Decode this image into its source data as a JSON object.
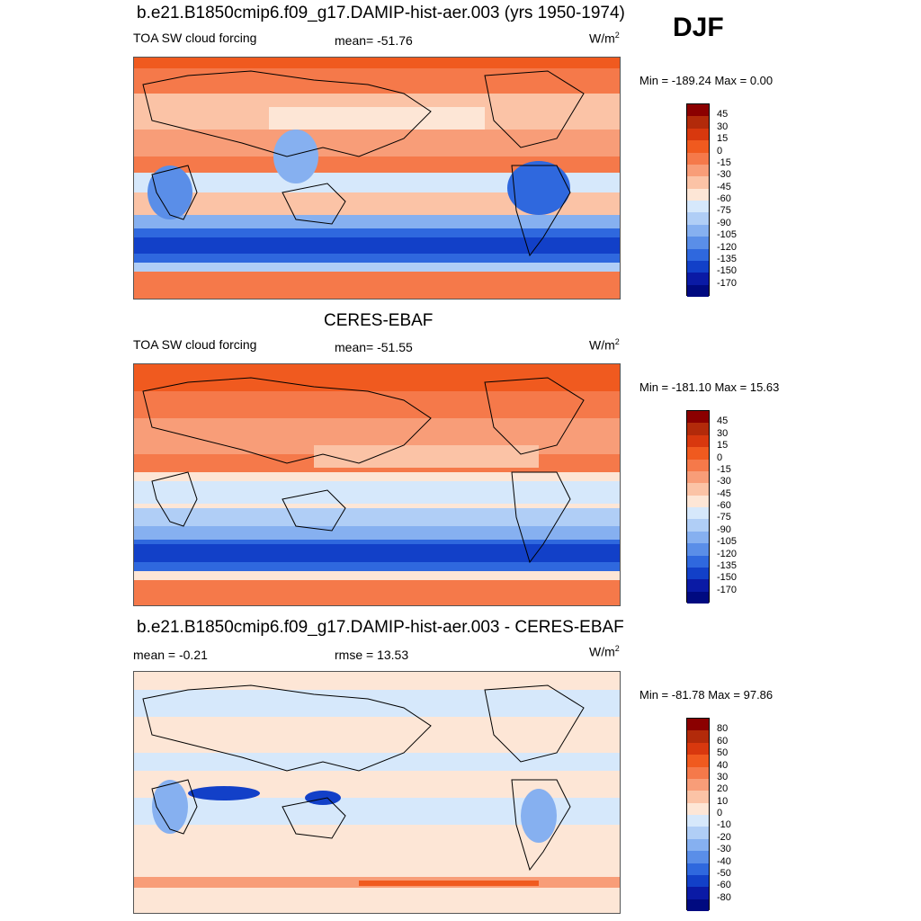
{
  "season": "DJF",
  "panels": [
    {
      "title": "b.e21.B1850cmip6.f09_g17.DAMIP-hist-aer.003 (yrs 1950-1974)",
      "left_label": "TOA SW cloud forcing",
      "center_label": "mean= -51.76",
      "units": "W/m",
      "units_sup": "2",
      "minmax": "Min = -189.24 Max =    0.00",
      "levels": [
        "45",
        "30",
        "15",
        "0",
        "-15",
        "-30",
        "-45",
        "-60",
        "-75",
        "-90",
        "-105",
        "-120",
        "-135",
        "-150",
        "-170"
      ]
    },
    {
      "title": "CERES-EBAF",
      "left_label": "TOA SW cloud forcing",
      "center_label": "mean= -51.55",
      "units": "W/m",
      "units_sup": "2",
      "minmax": "Min = -181.10 Max =  15.63",
      "levels": [
        "45",
        "30",
        "15",
        "0",
        "-15",
        "-30",
        "-45",
        "-60",
        "-75",
        "-90",
        "-105",
        "-120",
        "-135",
        "-150",
        "-170"
      ]
    },
    {
      "title": "b.e21.B1850cmip6.f09_g17.DAMIP-hist-aer.003 - CERES-EBAF",
      "left_label": "mean =  -0.21",
      "center_label": "rmse =  13.53",
      "units": "W/m",
      "units_sup": "2",
      "minmax": "Min = -81.78 Max =  97.86",
      "levels": [
        "80",
        "60",
        "50",
        "40",
        "30",
        "20",
        "10",
        "0",
        "-10",
        "-20",
        "-30",
        "-40",
        "-50",
        "-60",
        "-80"
      ]
    }
  ],
  "colors": {
    "scale": [
      "#8b0000",
      "#b22a0a",
      "#d8380e",
      "#f05a1f",
      "#f5794a",
      "#f89d78",
      "#fbc3a6",
      "#fde6d6",
      "#d6e8fb",
      "#b0cef6",
      "#86b0f0",
      "#5a8ee8",
      "#2f68de",
      "#1240c8",
      "#0a1aa5",
      "#000a80"
    ],
    "ocean_neutral": "#fde6d6"
  }
}
